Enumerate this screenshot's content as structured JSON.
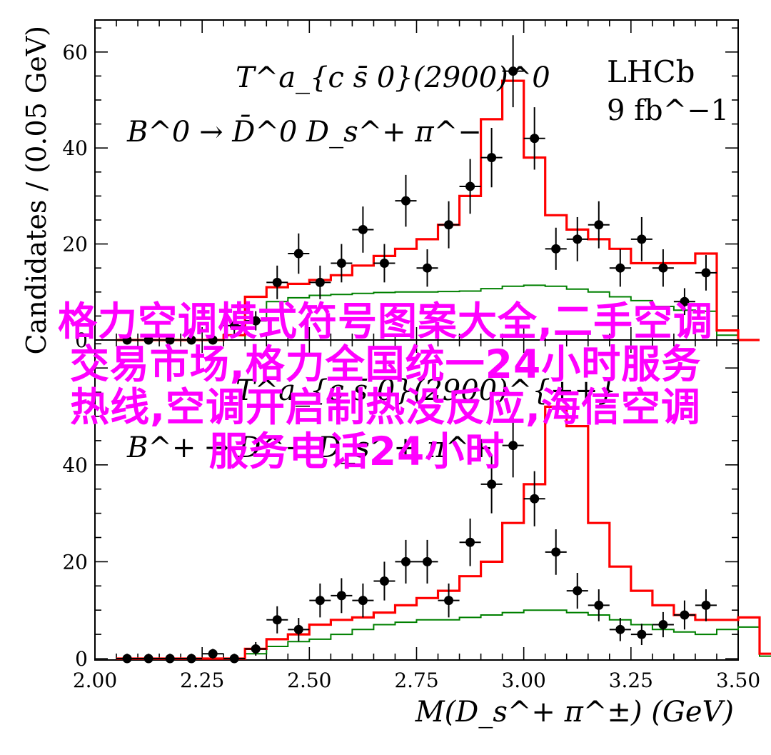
{
  "chart_data": [
    {
      "type": "histogram_with_points",
      "panel": "top",
      "title_line1": "T^a_{c s̄ 0}(2900)^0",
      "title_line2": "B^0 → D̄^0 D_s^+ π^−",
      "experiment": "LHCb",
      "lumi": "9 fb^−1",
      "ylim": [
        0,
        67
      ],
      "yticks": [
        0,
        20,
        40,
        60
      ],
      "colors": {
        "data": "#000000",
        "total_fit": "#ff0000",
        "background": "#008000"
      },
      "data_points": {
        "x": [
          2.075,
          2.125,
          2.175,
          2.225,
          2.275,
          2.325,
          2.375,
          2.425,
          2.475,
          2.525,
          2.575,
          2.625,
          2.675,
          2.725,
          2.775,
          2.825,
          2.875,
          2.925,
          2.975,
          3.025,
          3.075,
          3.125,
          3.175,
          3.225,
          3.275,
          3.325,
          3.375,
          3.425
        ],
        "y": [
          0,
          0,
          0,
          0,
          0,
          3,
          4,
          12,
          18,
          12,
          16,
          23,
          16,
          29,
          15,
          24,
          32,
          38,
          56,
          42,
          19,
          21,
          24,
          15,
          21,
          15,
          8,
          14
        ],
        "err": [
          1,
          1,
          1,
          1,
          1.5,
          2,
          2,
          3.5,
          4.2,
          3.5,
          4,
          4.8,
          4,
          5.4,
          3.9,
          4.9,
          5.7,
          6.2,
          7.5,
          6.5,
          4.4,
          4.6,
          4.9,
          3.9,
          4.6,
          3.9,
          2.8,
          3.7
        ]
      },
      "total_fit": {
        "edges_from": 2.05,
        "bin_width": 0.05,
        "values": [
          0,
          0,
          0,
          0,
          0,
          1,
          9,
          11,
          11.7,
          12.5,
          13.5,
          15.5,
          17.5,
          19,
          21,
          24,
          30,
          46,
          54,
          38,
          26,
          23,
          21,
          19,
          16,
          16,
          16,
          18,
          2,
          0
        ]
      },
      "background": {
        "edges_from": 2.05,
        "bin_width": 0.05,
        "values": [
          0,
          0,
          0,
          0,
          0,
          0,
          4,
          8,
          8.8,
          9.3,
          9.5,
          9.7,
          9.9,
          10,
          10,
          10.1,
          10.2,
          10.7,
          11.2,
          11.4,
          11.2,
          10.6,
          10,
          9,
          8.2,
          7,
          6.2,
          6,
          1,
          0
        ]
      }
    },
    {
      "type": "histogram_with_points",
      "panel": "bottom",
      "title_line1": "T^a_{c s̄ 0}(2900)^{++}",
      "title_line2": "B^+ → D^− D_s^+ π^+",
      "ylim": [
        0,
        67
      ],
      "yticks": [
        0,
        20,
        40
      ],
      "xlabel": "M(D_s^+ π^±) (GeV)",
      "xlim": [
        2.0,
        3.5
      ],
      "xticks": [
        "2.00",
        "2.25",
        "2.50",
        "2.75",
        "3.00",
        "3.25",
        "3.50"
      ],
      "colors": {
        "data": "#000000",
        "total_fit": "#ff0000",
        "background": "#008000"
      },
      "data_points": {
        "x": [
          2.075,
          2.125,
          2.175,
          2.225,
          2.275,
          2.325,
          2.375,
          2.425,
          2.475,
          2.525,
          2.575,
          2.625,
          2.675,
          2.725,
          2.775,
          2.825,
          2.875,
          2.925,
          2.975,
          3.025,
          3.075,
          3.125,
          3.175,
          3.225,
          3.275,
          3.325,
          3.375,
          3.425
        ],
        "y": [
          0,
          0,
          0,
          0,
          1,
          0,
          2,
          8,
          6,
          12,
          13,
          12,
          16,
          20,
          20,
          12,
          24,
          36,
          44,
          33,
          22,
          14,
          11,
          6,
          5,
          7,
          9,
          11
        ],
        "err": [
          1,
          1,
          1,
          1,
          1,
          1,
          1.4,
          2.8,
          2.4,
          3.5,
          3.6,
          3.5,
          4,
          4.5,
          4.5,
          3.5,
          4.9,
          6,
          6.6,
          5.7,
          4.7,
          3.7,
          3.3,
          2.4,
          2.2,
          2.6,
          3,
          3.3
        ]
      },
      "total_fit": {
        "edges_from": 2.05,
        "bin_width": 0.05,
        "values": [
          0,
          0,
          0,
          0,
          0,
          0,
          2,
          4,
          5,
          7,
          8,
          8.5,
          9.5,
          11,
          12.5,
          14,
          17,
          20,
          28,
          36,
          52,
          48,
          28,
          19,
          14,
          11,
          9,
          8,
          8,
          8.5,
          1,
          0
        ]
      },
      "background": {
        "edges_from": 2.05,
        "bin_width": 0.05,
        "values": [
          0,
          0,
          0,
          0,
          0,
          0,
          1,
          2.5,
          3.5,
          4,
          5,
          6,
          7,
          7.5,
          8,
          8,
          8.5,
          9,
          9.5,
          10,
          10,
          9.5,
          9,
          8,
          7,
          6,
          5.5,
          5,
          6,
          6.5,
          0.5,
          0
        ]
      }
    }
  ],
  "y_axis_label": "Candidates / (0.05 GeV)",
  "overlay_text": {
    "line1": "格力空调模式符号图案大全,二手空调",
    "line2": "交易市场,格力全国统一24小时服务",
    "line3": "热线,空调开启制热没反应,海信空调",
    "line4": "服务电话24小时"
  }
}
